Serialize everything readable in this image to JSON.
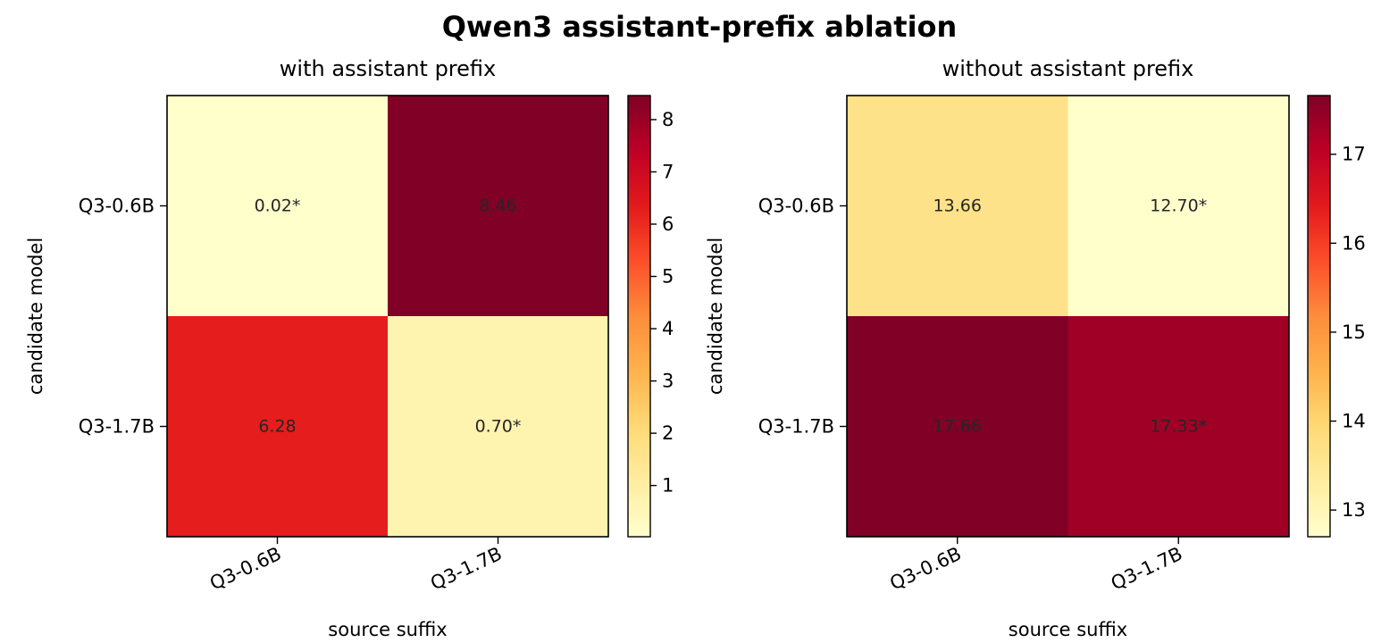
{
  "title": "Qwen3 assistant-prefix ablation",
  "colormap": {
    "name": "YlOrRd",
    "stops": [
      "#ffffcc",
      "#ffeda0",
      "#fed976",
      "#feb24c",
      "#fd8d3c",
      "#fc4e2a",
      "#e31a1c",
      "#bd0026",
      "#800026"
    ]
  },
  "chart_data": [
    {
      "type": "heatmap",
      "title": "with assistant prefix",
      "xlabel": "source suffix",
      "ylabel": "candidate model",
      "x_categories": [
        "Q3-0.6B",
        "Q3-1.7B"
      ],
      "y_categories": [
        "Q3-0.6B",
        "Q3-1.7B"
      ],
      "values": [
        [
          0.02,
          8.46
        ],
        [
          6.28,
          0.7
        ]
      ],
      "cell_labels": [
        [
          "0.02*",
          "8.46"
        ],
        [
          "6.28",
          "0.70*"
        ]
      ],
      "color_range": [
        0.02,
        8.46
      ],
      "colorbar_ticks": [
        1,
        2,
        3,
        4,
        5,
        6,
        7,
        8
      ],
      "colorbar_tick_labels": [
        "1",
        "2",
        "3",
        "4",
        "5",
        "6",
        "7",
        "8"
      ]
    },
    {
      "type": "heatmap",
      "title": "without assistant prefix",
      "xlabel": "source suffix",
      "ylabel": "candidate model",
      "x_categories": [
        "Q3-0.6B",
        "Q3-1.7B"
      ],
      "y_categories": [
        "Q3-0.6B",
        "Q3-1.7B"
      ],
      "values": [
        [
          13.66,
          12.7
        ],
        [
          17.66,
          17.33
        ]
      ],
      "cell_labels": [
        [
          "13.66",
          "12.70*"
        ],
        [
          "17.66",
          "17.33*"
        ]
      ],
      "color_range": [
        12.7,
        17.66
      ],
      "colorbar_ticks": [
        13,
        14,
        15,
        16,
        17
      ],
      "colorbar_tick_labels": [
        "13",
        "14",
        "15",
        "16",
        "17"
      ]
    }
  ]
}
